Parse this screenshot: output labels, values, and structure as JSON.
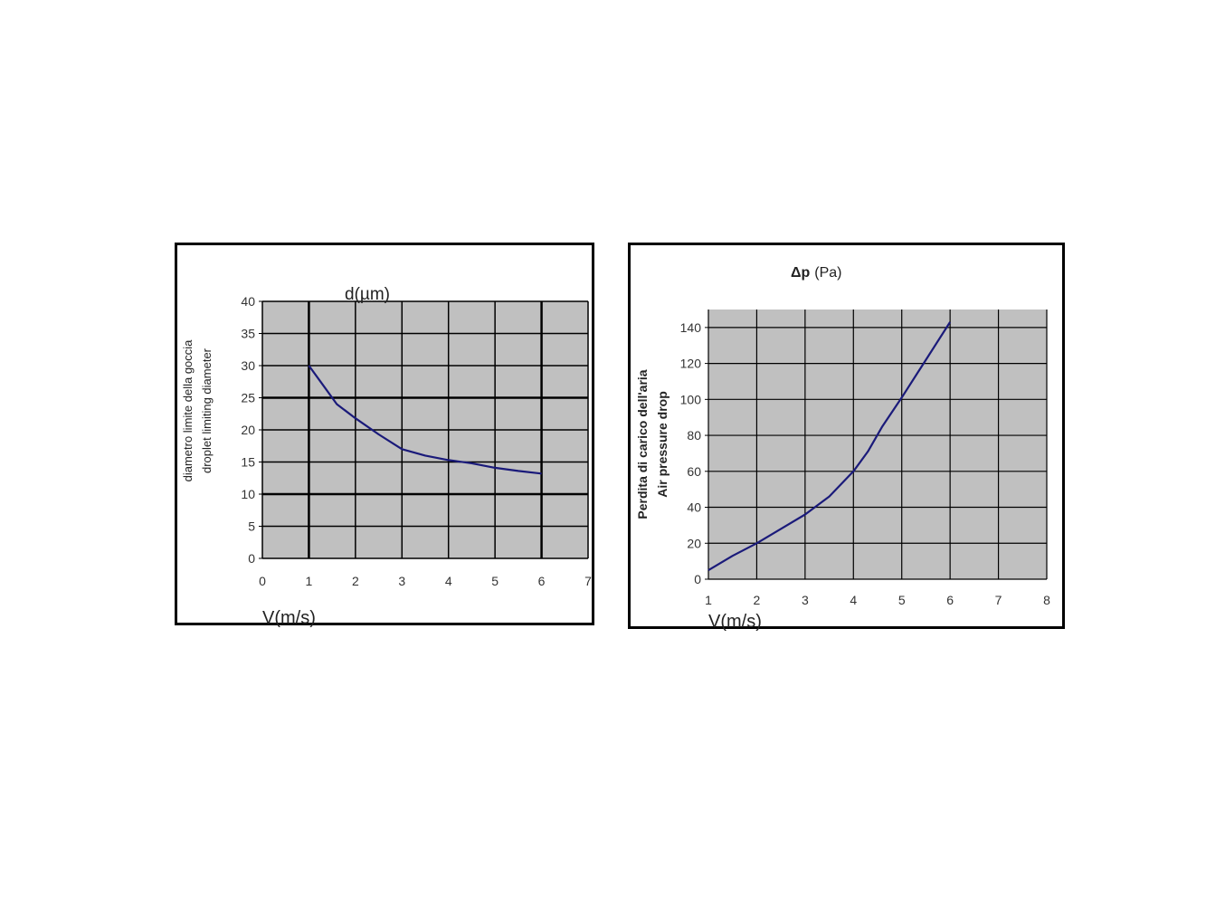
{
  "colors": {
    "plot_bg": "#c0c0c0",
    "line": "#1a1a7a",
    "grid": "#000000"
  },
  "chart_data": [
    {
      "type": "line",
      "title": "d(µm)",
      "xlabel": "V(m/s)",
      "ylabel": "diametro limite della goccia",
      "ylabel2": "droplet limiting diameter",
      "xlim": [
        0,
        7
      ],
      "ylim": [
        0,
        40
      ],
      "xticks": [
        "0",
        "1",
        "2",
        "3",
        "4",
        "5",
        "6",
        "7"
      ],
      "yticks": [
        "0",
        "5",
        "10",
        "15",
        "20",
        "25",
        "30",
        "35",
        "40"
      ],
      "grid": true,
      "series": [
        {
          "x": [
            1,
            1.3,
            1.6,
            2,
            2.5,
            3,
            3.5,
            4,
            4.5,
            5,
            5.5,
            6
          ],
          "y": [
            30,
            27,
            24,
            21.8,
            19.3,
            17,
            16,
            15.3,
            14.8,
            14.1,
            13.6,
            13.2
          ]
        }
      ]
    },
    {
      "type": "line",
      "title_symbol": "Δp",
      "title_unit": "(Pa)",
      "xlabel": "V(m/s)",
      "ylabel": "Perdita di carico dell'aria",
      "ylabel2": "Air pressure drop",
      "xlim": [
        1,
        8
      ],
      "ylim": [
        0,
        150
      ],
      "xticks": [
        "1",
        "2",
        "3",
        "4",
        "5",
        "6",
        "7",
        "8"
      ],
      "yticks": [
        "0",
        "20",
        "40",
        "60",
        "80",
        "100",
        "120",
        "140"
      ],
      "grid": true,
      "series": [
        {
          "x": [
            1,
            1.5,
            2,
            2.5,
            3,
            3.5,
            4,
            4.3,
            4.6,
            5,
            5.5,
            6
          ],
          "y": [
            5,
            13,
            20,
            28,
            36,
            46,
            60,
            71,
            85,
            101,
            122,
            143
          ]
        }
      ]
    }
  ]
}
